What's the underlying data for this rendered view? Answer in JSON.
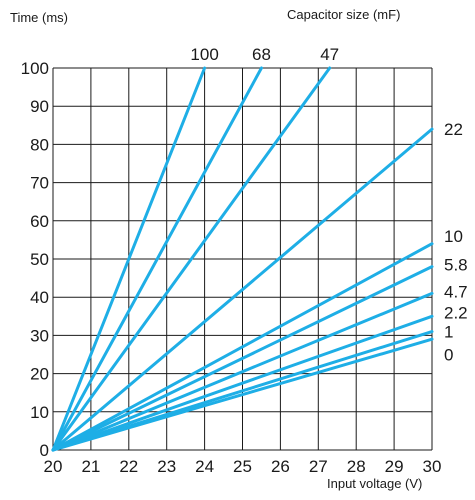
{
  "chart_data": {
    "type": "line",
    "title": "",
    "xlabel": "Input voltage (V)",
    "ylabel": "Time (ms)",
    "legend_title": "Capacitor size (mF)",
    "xlim": [
      20,
      30
    ],
    "ylim": [
      0,
      100
    ],
    "x_ticks": [
      20,
      21,
      22,
      23,
      24,
      25,
      26,
      27,
      28,
      29,
      30
    ],
    "y_ticks": [
      0,
      10,
      20,
      30,
      40,
      50,
      60,
      70,
      80,
      90,
      100
    ],
    "grid": true,
    "line_color": "#1eaee6",
    "series": [
      {
        "name": "100",
        "points": [
          [
            20,
            0
          ],
          [
            24,
            100
          ]
        ]
      },
      {
        "name": "68",
        "points": [
          [
            20,
            0
          ],
          [
            25.5,
            100
          ]
        ]
      },
      {
        "name": "47",
        "points": [
          [
            20,
            0
          ],
          [
            27.3,
            100
          ]
        ]
      },
      {
        "name": "22",
        "points": [
          [
            20,
            0
          ],
          [
            30,
            84
          ]
        ]
      },
      {
        "name": "10",
        "points": [
          [
            20,
            0
          ],
          [
            30,
            54
          ]
        ]
      },
      {
        "name": "5.8",
        "points": [
          [
            20,
            0
          ],
          [
            30,
            48
          ]
        ]
      },
      {
        "name": "4.7",
        "points": [
          [
            20,
            0
          ],
          [
            30,
            41
          ]
        ]
      },
      {
        "name": "2.2",
        "points": [
          [
            20,
            0
          ],
          [
            30,
            35
          ]
        ]
      },
      {
        "name": "1",
        "points": [
          [
            20,
            0
          ],
          [
            30,
            31
          ]
        ]
      },
      {
        "name": "0",
        "points": [
          [
            20,
            0
          ],
          [
            30,
            29
          ]
        ]
      }
    ]
  }
}
